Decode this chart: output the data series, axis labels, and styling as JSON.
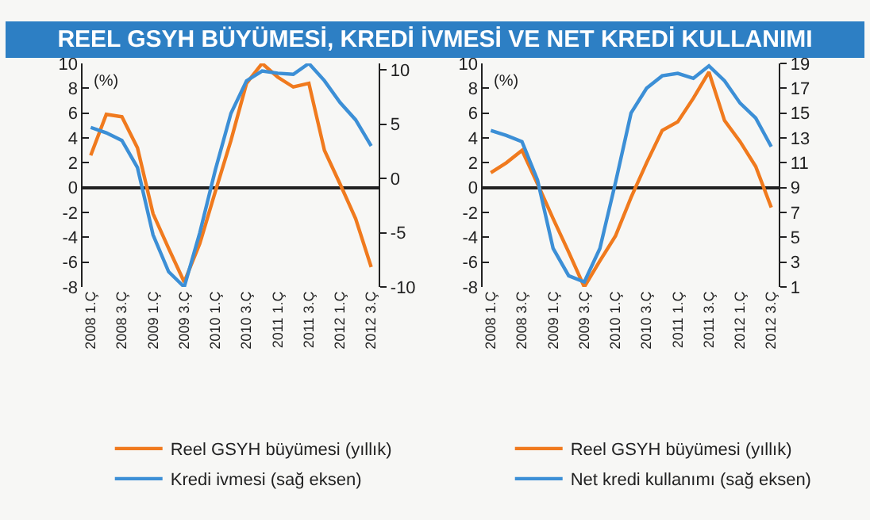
{
  "chart_data": [
    {
      "type": "line",
      "title": "REEL GSYH BÜYÜMESİ, KREDİ İVMESİ VE NET KREDİ KULLANIMI",
      "ylabel": "(%)",
      "legend": "bottom",
      "categories": [
        "2008 1.Ç",
        null,
        "2008 3.Ç",
        null,
        "2009 1.Ç",
        null,
        "2009 3.Ç",
        null,
        "2010 1.Ç",
        null,
        "2010 3.Ç",
        null,
        "2011 1.Ç",
        null,
        "2011 3.Ç",
        null,
        "2012 1.Ç",
        null,
        "2012 3.Ç"
      ],
      "ylim": [
        -8,
        10
      ],
      "yticks": [
        -8,
        -6,
        -4,
        -2,
        0,
        2,
        4,
        6,
        8,
        10
      ],
      "y2lim": [
        -10,
        10.6
      ],
      "y2ticks": [
        -10,
        -5,
        0,
        5,
        10
      ],
      "series": [
        {
          "name": "Reel GSYH büyümesi (yıllık)",
          "color": "#f07a1e",
          "values": [
            2.6,
            5.9,
            5.7,
            3.2,
            -2.1,
            -4.9,
            -7.6,
            -4.5,
            -0.3,
            3.8,
            8.4,
            10.0,
            8.9,
            8.1,
            8.4,
            3.0,
            0.3,
            -2.5,
            -6.4
          ]
        },
        {
          "name": "Kredi ivmesi (sağ eksen)",
          "color": "#3c8fd6",
          "axis": "y2",
          "values": [
            4.7,
            4.2,
            3.5,
            1.0,
            -5.2,
            -8.6,
            -10.0,
            -5.0,
            0.8,
            6.0,
            9.0,
            9.9,
            9.7,
            9.6,
            10.6,
            9.0,
            7.0,
            5.4,
            3.0
          ]
        }
      ]
    },
    {
      "type": "line",
      "ylabel": "(%)",
      "legend": "bottom",
      "categories": [
        "2008 1.Ç",
        null,
        "2008 3.Ç",
        null,
        "2009 1.Ç",
        null,
        "2009 3.Ç",
        null,
        "2010 1.Ç",
        null,
        "2010 3.Ç",
        null,
        "2011 1.Ç",
        null,
        "2011 3.Ç",
        null,
        "2012 1.Ç",
        null,
        "2012 3.Ç"
      ],
      "ylim": [
        -8,
        10
      ],
      "yticks": [
        -8,
        -6,
        -4,
        -2,
        0,
        2,
        4,
        6,
        8,
        10
      ],
      "y2lim": [
        1,
        19
      ],
      "y2ticks": [
        1,
        3,
        5,
        7,
        9,
        11,
        13,
        15,
        17,
        19
      ],
      "series": [
        {
          "name": "Reel GSYH büyümesi (yıllık)",
          "color": "#f07a1e",
          "values": [
            1.2,
            2.0,
            3.0,
            0.3,
            -2.5,
            -5.2,
            -8.0,
            -5.9,
            -3.9,
            -0.8,
            2.0,
            4.6,
            5.3,
            7.2,
            9.3,
            5.4,
            3.7,
            1.7,
            -1.6
          ]
        },
        {
          "name": "Net kredi kullanımı (sağ eksen)",
          "color": "#3c8fd6",
          "axis": "y2",
          "values": [
            13.6,
            13.2,
            12.7,
            9.6,
            4.1,
            1.9,
            1.4,
            4.1,
            9.4,
            15.0,
            17.0,
            18.0,
            18.2,
            17.8,
            18.8,
            17.6,
            15.8,
            14.6,
            12.3
          ]
        }
      ]
    }
  ]
}
